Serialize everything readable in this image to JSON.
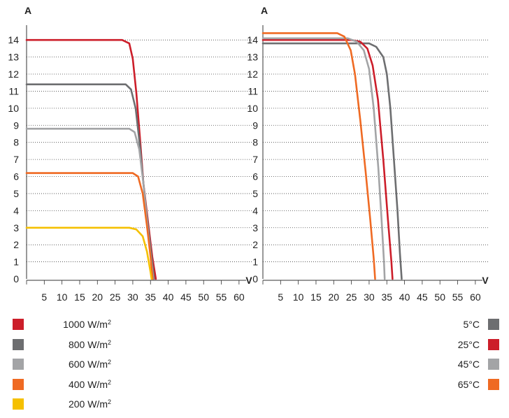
{
  "chart_data": [
    {
      "type": "line",
      "ylabel": "A",
      "xlabel": "V",
      "xlim": [
        0,
        62
      ],
      "ylim": [
        0,
        14.5
      ],
      "xticks": [
        "5",
        "10",
        "15",
        "20",
        "25",
        "30",
        "35",
        "40",
        "45",
        "50",
        "55",
        "60"
      ],
      "yticks": [
        "0",
        "1",
        "2",
        "3",
        "4",
        "5",
        "6",
        "7",
        "8",
        "9",
        "10",
        "11",
        "12",
        "13",
        "14"
      ],
      "grid": "horizontal dotted",
      "legend_position": "bottom-left",
      "series": [
        {
          "name": "1000 W/m2",
          "label_main": "1000 W/m",
          "label_sup": "2",
          "color": "#cc1e2a",
          "points": [
            [
              0,
              14.0
            ],
            [
              27,
              14.0
            ],
            [
              29,
              13.8
            ],
            [
              30,
              12.9
            ],
            [
              31,
              10.9
            ],
            [
              32,
              8.3
            ],
            [
              33,
              5.6
            ],
            [
              34.5,
              3.0
            ],
            [
              35.5,
              1.3
            ],
            [
              36.5,
              0
            ]
          ]
        },
        {
          "name": "800 W/m2",
          "label_main": "800 W/m",
          "label_sup": "2",
          "color": "#6d6e70",
          "points": [
            [
              0,
              11.4
            ],
            [
              28,
              11.4
            ],
            [
              29.5,
              11.1
            ],
            [
              30.8,
              10.0
            ],
            [
              32,
              7.8
            ],
            [
              33,
              5.6
            ],
            [
              34,
              3.6
            ],
            [
              35,
              1.8
            ],
            [
              36,
              0
            ]
          ]
        },
        {
          "name": "600 W/m2",
          "label_main": "600 W/m",
          "label_sup": "2",
          "color": "#a3a4a6",
          "points": [
            [
              0,
              8.8
            ],
            [
              29,
              8.8
            ],
            [
              30.5,
              8.6
            ],
            [
              31.8,
              7.6
            ],
            [
              33,
              5.6
            ],
            [
              34,
              3.4
            ],
            [
              35,
              1.4
            ],
            [
              35.8,
              0
            ]
          ]
        },
        {
          "name": "400 W/m2",
          "label_main": "400 W/m",
          "label_sup": "2",
          "color": "#ef6a23",
          "points": [
            [
              0,
              6.2
            ],
            [
              30,
              6.2
            ],
            [
              31.5,
              6.0
            ],
            [
              32.8,
              5.0
            ],
            [
              34,
              3.1
            ],
            [
              35,
              1.3
            ],
            [
              35.6,
              0
            ]
          ]
        },
        {
          "name": "200 W/m2",
          "label_main": "200 W/m",
          "label_sup": "2",
          "color": "#f5c000",
          "points": [
            [
              0,
              3.0
            ],
            [
              29,
              3.0
            ],
            [
              31,
              2.9
            ],
            [
              32.8,
              2.5
            ],
            [
              34,
              1.6
            ],
            [
              35,
              0.4
            ],
            [
              35.3,
              0
            ]
          ]
        }
      ]
    },
    {
      "type": "line",
      "ylabel": "A",
      "xlabel": "V",
      "xlim": [
        0,
        62
      ],
      "ylim": [
        0,
        14.5
      ],
      "xticks": [
        "5",
        "10",
        "15",
        "20",
        "25",
        "30",
        "35",
        "40",
        "45",
        "50",
        "55",
        "60"
      ],
      "yticks": [
        "0",
        "1",
        "2",
        "3",
        "4",
        "5",
        "6",
        "7",
        "8",
        "9",
        "10",
        "11",
        "12",
        "13",
        "14"
      ],
      "grid": "horizontal dotted",
      "legend_position": "bottom-right",
      "series": [
        {
          "name": "5°C",
          "color": "#6d6e70",
          "points": [
            [
              0,
              13.8
            ],
            [
              27,
              13.8
            ],
            [
              30,
              13.8
            ],
            [
              32,
              13.6
            ],
            [
              34,
              13.0
            ],
            [
              35,
              12.0
            ],
            [
              36,
              10.0
            ],
            [
              37,
              7.0
            ],
            [
              38,
              4.0
            ],
            [
              38.7,
              1.5
            ],
            [
              39.2,
              0
            ]
          ]
        },
        {
          "name": "25°C",
          "color": "#cc1e2a",
          "points": [
            [
              0,
              14.0
            ],
            [
              25,
              14.0
            ],
            [
              27.5,
              13.9
            ],
            [
              29.5,
              13.5
            ],
            [
              31,
              12.5
            ],
            [
              32.5,
              10.5
            ],
            [
              34,
              7.0
            ],
            [
              35.3,
              3.5
            ],
            [
              36.3,
              1.0
            ],
            [
              36.6,
              0
            ]
          ]
        },
        {
          "name": "45°C",
          "color": "#a3a4a6",
          "points": [
            [
              0,
              14.1
            ],
            [
              24,
              14.1
            ],
            [
              26.5,
              13.9
            ],
            [
              28.5,
              13.4
            ],
            [
              30,
              12.3
            ],
            [
              31.3,
              10.0
            ],
            [
              32.6,
              6.5
            ],
            [
              33.5,
              3.5
            ],
            [
              34.2,
              1.0
            ],
            [
              34.4,
              0
            ]
          ]
        },
        {
          "name": "65°C",
          "color": "#ef6a23",
          "points": [
            [
              0,
              14.4
            ],
            [
              21,
              14.4
            ],
            [
              23,
              14.2
            ],
            [
              24.8,
              13.4
            ],
            [
              26,
              12.0
            ],
            [
              27.5,
              9.3
            ],
            [
              29,
              6.3
            ],
            [
              30.3,
              3.5
            ],
            [
              31.3,
              1.2
            ],
            [
              31.7,
              0
            ]
          ]
        }
      ]
    }
  ]
}
